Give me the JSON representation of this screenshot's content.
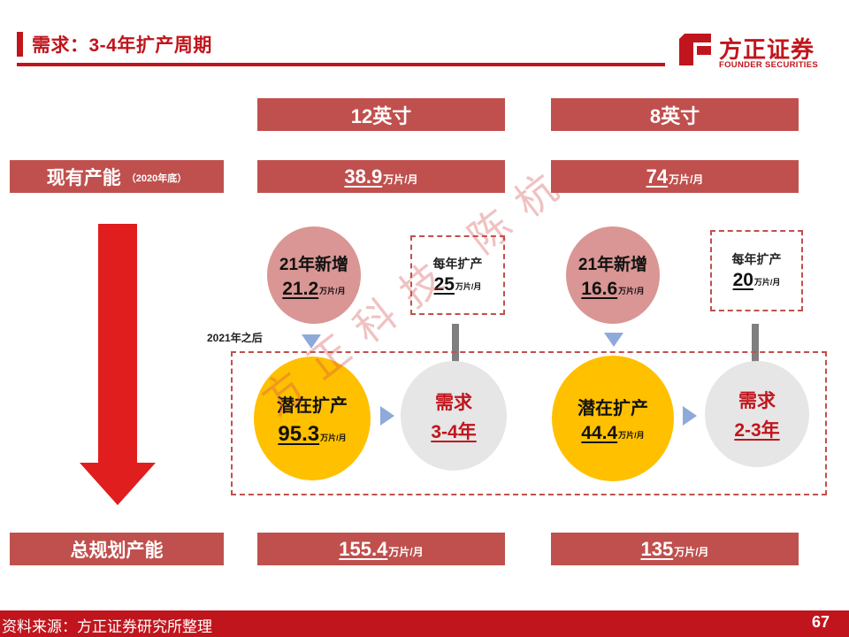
{
  "header": {
    "title": "需求：3-4年扩产周期"
  },
  "logo": {
    "cn": "方正证券",
    "en": "FOUNDER SECURITIES"
  },
  "columns": {
    "col1": "12英寸",
    "col2": "8英寸"
  },
  "rows": {
    "existing_label": "现有产能",
    "existing_note": "（2020年底）",
    "total_label": "总规划产能"
  },
  "existing": {
    "in12_value": "38.9",
    "in12_unit": "万片/月",
    "in8_value": "74",
    "in8_unit": "万片/月"
  },
  "new21": {
    "label": "21年新增",
    "in12_value": "21.2",
    "in12_unit": "万片/月",
    "in8_value": "16.6",
    "in8_unit": "万片/月"
  },
  "yearly": {
    "label": "每年扩产",
    "in12_value": "25",
    "in12_unit": "万片/月",
    "in8_value": "20",
    "in8_unit": "万片/月"
  },
  "after_note": "2021年之后",
  "potential": {
    "label": "潜在扩产",
    "in12_value": "95.3",
    "in12_unit": "万片/月",
    "in8_value": "44.4",
    "in8_unit": "万片/月"
  },
  "demand": {
    "label": "需求",
    "in12_years": "3-4年",
    "in8_years": "2-3年"
  },
  "total": {
    "in12_value": "155.4",
    "in12_unit": "万片/月",
    "in8_value": "135",
    "in8_unit": "万片/月"
  },
  "footer": {
    "source": "资料来源：方正证券研究所整理",
    "page": "67"
  },
  "watermark": "方正科技 陈杭",
  "colors": {
    "brand_red": "#c0151c",
    "box_red": "#c0504d",
    "pink": "#d99694",
    "yellow": "#ffc000",
    "grey": "#e6e6e6",
    "arrow_grey": "#7f7f7f",
    "triangle_blue": "#8eaadb"
  }
}
